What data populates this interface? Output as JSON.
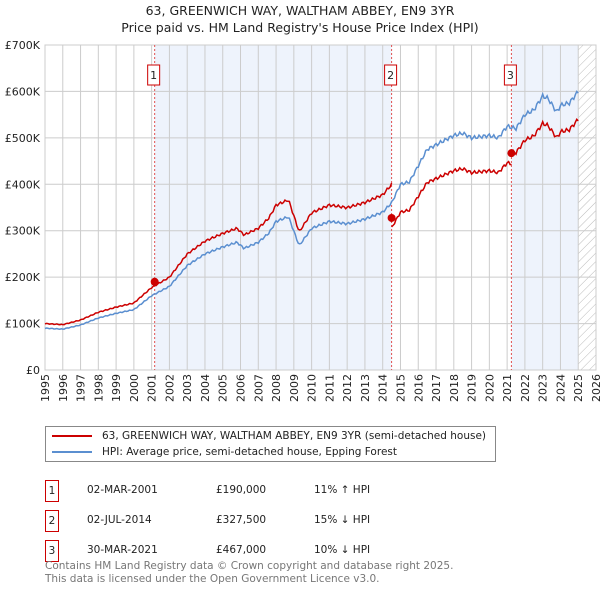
{
  "chart_data": {
    "type": "line",
    "title": "63, GREENWICH WAY, WALTHAM ABBEY, EN9 3YR",
    "subtitle": "Price paid vs. HM Land Registry's House Price Index (HPI)",
    "xlim": [
      1995,
      2026
    ],
    "ylim": [
      0,
      700000
    ],
    "x_ticks": [
      "1995",
      "1996",
      "1997",
      "1998",
      "1999",
      "2000",
      "2001",
      "2002",
      "2003",
      "2004",
      "2005",
      "2006",
      "2007",
      "2008",
      "2009",
      "2010",
      "2011",
      "2012",
      "2013",
      "2014",
      "2015",
      "2016",
      "2017",
      "2018",
      "2019",
      "2020",
      "2021",
      "2022",
      "2023",
      "2024",
      "2025",
      "2026"
    ],
    "y_ticks": [
      {
        "v": 0,
        "label": "£0"
      },
      {
        "v": 100000,
        "label": "£100K"
      },
      {
        "v": 200000,
        "label": "£200K"
      },
      {
        "v": 300000,
        "label": "£300K"
      },
      {
        "v": 400000,
        "label": "£400K"
      },
      {
        "v": 500000,
        "label": "£500K"
      },
      {
        "v": 600000,
        "label": "£600K"
      },
      {
        "v": 700000,
        "label": "£700K"
      }
    ],
    "grid": true,
    "forecast_hatch_from": 2025.0,
    "series": [
      {
        "name": "HPI: Average price, semi-detached house, Epping Forest",
        "color": "#5b8fd0",
        "x": [
          1995,
          1996,
          1997,
          1998,
          1999,
          2000,
          2001,
          2002,
          2003,
          2004,
          2005,
          2005.8,
          2006.2,
          2007,
          2007.6,
          2008,
          2008.7,
          2009.3,
          2010,
          2011,
          2012,
          2013,
          2014,
          2014.5,
          2015,
          2015.5,
          2016,
          2016.5,
          2017,
          2018,
          2018.5,
          2019,
          2020,
          2020.5,
          2021,
          2021.5,
          2022,
          2022.5,
          2023,
          2023.3,
          2023.8,
          2024,
          2024.5,
          2025
        ],
        "y": [
          90000,
          88000,
          97000,
          112000,
          122000,
          130000,
          160000,
          180000,
          225000,
          250000,
          265000,
          275000,
          262000,
          275000,
          295000,
          320000,
          330000,
          268000,
          305000,
          320000,
          315000,
          325000,
          340000,
          360000,
          400000,
          405000,
          440000,
          475000,
          485000,
          505000,
          510000,
          500000,
          505000,
          500000,
          525000,
          520000,
          550000,
          560000,
          590000,
          585000,
          555000,
          570000,
          575000,
          600000
        ]
      },
      {
        "name": "63, GREENWICH WAY, WALTHAM ABBEY, EN9 3YR (semi-detached house)",
        "color": "#cc0000",
        "segments": [
          {
            "from": 1995,
            "to": 2014.5,
            "ratio": 1.11
          },
          {
            "from": 2014.5,
            "to": 2021.24,
            "ratio": 0.85
          },
          {
            "from": 2021.24,
            "to": 2025,
            "ratio": 0.9
          }
        ]
      }
    ],
    "sales": [
      {
        "id": "1",
        "x": 2001.17,
        "date": "02-MAR-2001",
        "price": 190000,
        "price_label": "£190,000",
        "hpi": "11% ↑ HPI"
      },
      {
        "id": "2",
        "x": 2014.5,
        "date": "02-JUL-2014",
        "price": 327500,
        "price_label": "£327,500",
        "hpi": "15% ↓ HPI"
      },
      {
        "id": "3",
        "x": 2021.24,
        "date": "30-MAR-2021",
        "price": 467000,
        "price_label": "£467,000",
        "hpi": "10% ↓ HPI"
      }
    ],
    "legend_placement": "bottom"
  },
  "legend": {
    "property": "63, GREENWICH WAY, WALTHAM ABBEY, EN9 3YR (semi-detached house)",
    "hpi": "HPI: Average price, semi-detached house, Epping Forest"
  },
  "footer": {
    "line1": "Contains HM Land Registry data © Crown copyright and database right 2025.",
    "line2": "This data is licensed under the Open Government Licence v3.0."
  }
}
